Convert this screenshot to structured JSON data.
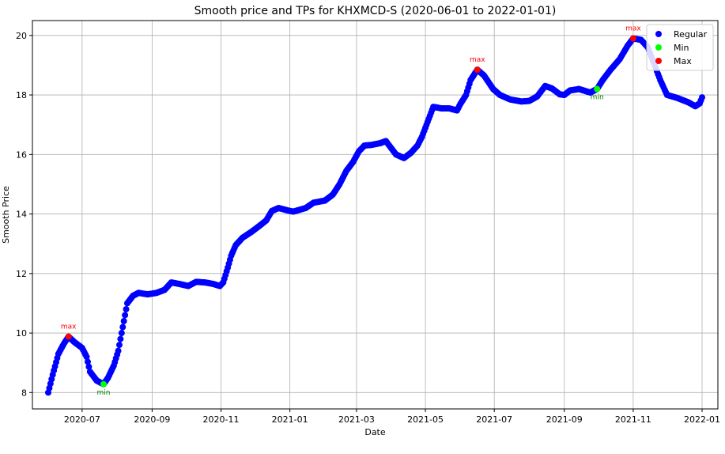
{
  "chart_data": {
    "type": "scatter",
    "title": "Smooth price and TPs for KHXMCD-S (2020-06-01 to 2022-01-01)",
    "xlabel": "Date",
    "ylabel": "Smooth Price",
    "xlim": [
      "2020-05-18",
      "2022-01-15"
    ],
    "ylim": [
      7.45,
      20.5
    ],
    "x_ticks": [
      "2020-07-01",
      "2020-09-01",
      "2020-11-01",
      "2021-01-01",
      "2021-03-01",
      "2021-05-01",
      "2021-07-01",
      "2021-09-01",
      "2021-11-01",
      "2022-01-01"
    ],
    "x_tick_labels": [
      "2020-07",
      "2020-09",
      "2020-11",
      "2021-01",
      "2021-03",
      "2021-05",
      "2021-07",
      "2021-09",
      "2021-11",
      "2022-01"
    ],
    "y_ticks": [
      8,
      10,
      12,
      14,
      16,
      18,
      20
    ],
    "y_tick_labels": [
      "8",
      "10",
      "12",
      "14",
      "16",
      "18",
      "20"
    ],
    "grid": true,
    "legend": {
      "placement": "top-right",
      "entries": [
        "Regular",
        "Min",
        "Max"
      ]
    },
    "colors": {
      "regular": "#0000ff",
      "min": "#00ff00",
      "max": "#ff0000",
      "min_text": "#008000",
      "max_text": "#ff0000"
    },
    "series": [
      {
        "name": "Regular",
        "keyframes": [
          [
            "2020-06-01",
            8.0
          ],
          [
            "2020-06-05",
            8.6
          ],
          [
            "2020-06-10",
            9.3
          ],
          [
            "2020-06-15",
            9.65
          ],
          [
            "2020-06-19",
            9.88
          ],
          [
            "2020-06-24",
            9.7
          ],
          [
            "2020-07-01",
            9.5
          ],
          [
            "2020-07-05",
            9.2
          ],
          [
            "2020-07-08",
            8.7
          ],
          [
            "2020-07-14",
            8.4
          ],
          [
            "2020-07-20",
            8.28
          ],
          [
            "2020-07-24",
            8.5
          ],
          [
            "2020-07-29",
            8.9
          ],
          [
            "2020-08-02",
            9.4
          ],
          [
            "2020-08-06",
            10.2
          ],
          [
            "2020-08-10",
            11.0
          ],
          [
            "2020-08-15",
            11.25
          ],
          [
            "2020-08-20",
            11.35
          ],
          [
            "2020-08-28",
            11.3
          ],
          [
            "2020-09-05",
            11.35
          ],
          [
            "2020-09-12",
            11.45
          ],
          [
            "2020-09-18",
            11.7
          ],
          [
            "2020-09-25",
            11.65
          ],
          [
            "2020-10-03",
            11.58
          ],
          [
            "2020-10-10",
            11.72
          ],
          [
            "2020-10-18",
            11.7
          ],
          [
            "2020-10-25",
            11.65
          ],
          [
            "2020-10-31",
            11.58
          ],
          [
            "2020-11-03",
            11.7
          ],
          [
            "2020-11-07",
            12.2
          ],
          [
            "2020-11-10",
            12.6
          ],
          [
            "2020-11-14",
            12.95
          ],
          [
            "2020-11-20",
            13.2
          ],
          [
            "2020-11-28",
            13.4
          ],
          [
            "2020-12-05",
            13.6
          ],
          [
            "2020-12-11",
            13.78
          ],
          [
            "2020-12-16",
            14.1
          ],
          [
            "2020-12-22",
            14.2
          ],
          [
            "2020-12-30",
            14.12
          ],
          [
            "2021-01-04",
            14.08
          ],
          [
            "2021-01-15",
            14.2
          ],
          [
            "2021-01-22",
            14.38
          ],
          [
            "2021-02-01",
            14.45
          ],
          [
            "2021-02-08",
            14.65
          ],
          [
            "2021-02-14",
            15.0
          ],
          [
            "2021-02-20",
            15.45
          ],
          [
            "2021-02-26",
            15.75
          ],
          [
            "2021-03-03",
            16.1
          ],
          [
            "2021-03-08",
            16.3
          ],
          [
            "2021-03-14",
            16.32
          ],
          [
            "2021-03-22",
            16.38
          ],
          [
            "2021-03-27",
            16.45
          ],
          [
            "2021-04-01",
            16.2
          ],
          [
            "2021-04-05",
            16.0
          ],
          [
            "2021-04-12",
            15.88
          ],
          [
            "2021-04-18",
            16.05
          ],
          [
            "2021-04-24",
            16.3
          ],
          [
            "2021-04-28",
            16.6
          ],
          [
            "2021-05-03",
            17.1
          ],
          [
            "2021-05-08",
            17.6
          ],
          [
            "2021-05-15",
            17.55
          ],
          [
            "2021-05-22",
            17.55
          ],
          [
            "2021-05-29",
            17.48
          ],
          [
            "2021-06-01",
            17.7
          ],
          [
            "2021-06-06",
            18.0
          ],
          [
            "2021-06-10",
            18.5
          ],
          [
            "2021-06-16",
            18.85
          ],
          [
            "2021-06-22",
            18.65
          ],
          [
            "2021-06-30",
            18.2
          ],
          [
            "2021-07-06",
            18.0
          ],
          [
            "2021-07-15",
            17.85
          ],
          [
            "2021-07-25",
            17.78
          ],
          [
            "2021-08-01",
            17.8
          ],
          [
            "2021-08-08",
            17.95
          ],
          [
            "2021-08-15",
            18.3
          ],
          [
            "2021-08-21",
            18.22
          ],
          [
            "2021-08-28",
            18.02
          ],
          [
            "2021-09-01",
            18.0
          ],
          [
            "2021-09-06",
            18.15
          ],
          [
            "2021-09-14",
            18.2
          ],
          [
            "2021-09-24",
            18.08
          ],
          [
            "2021-09-30",
            18.2
          ],
          [
            "2021-10-05",
            18.5
          ],
          [
            "2021-10-12",
            18.85
          ],
          [
            "2021-10-20",
            19.2
          ],
          [
            "2021-10-27",
            19.65
          ],
          [
            "2021-11-01",
            19.9
          ],
          [
            "2021-11-08",
            19.85
          ],
          [
            "2021-11-14",
            19.6
          ],
          [
            "2021-11-19",
            19.1
          ],
          [
            "2021-11-25",
            18.5
          ],
          [
            "2021-12-01",
            18.0
          ],
          [
            "2021-12-10",
            17.9
          ],
          [
            "2021-12-20",
            17.75
          ],
          [
            "2021-12-26",
            17.62
          ],
          [
            "2021-12-30",
            17.72
          ],
          [
            "2022-01-01",
            17.92
          ]
        ]
      },
      {
        "name": "Min",
        "points": [
          [
            "2020-07-20",
            8.28
          ],
          [
            "2021-09-30",
            18.2
          ]
        ],
        "label": "min"
      },
      {
        "name": "Max",
        "points": [
          [
            "2020-06-19",
            9.88
          ],
          [
            "2021-06-16",
            18.85
          ],
          [
            "2021-11-01",
            19.9
          ]
        ],
        "label": "max"
      }
    ]
  }
}
